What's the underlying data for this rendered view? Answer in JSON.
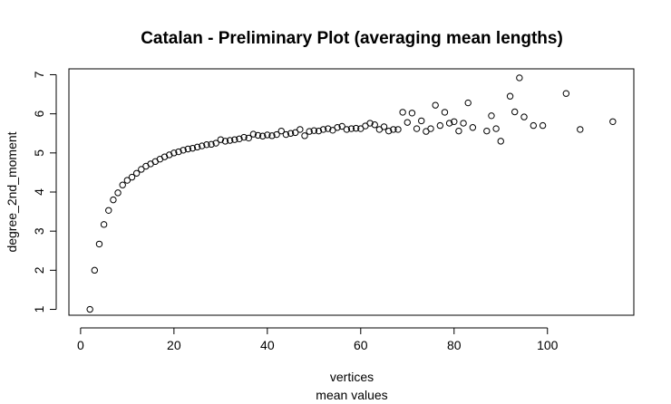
{
  "chart_data": {
    "type": "scatter",
    "title": "Catalan - Preliminary Plot (averaging mean lengths)",
    "xlabel": "vertices",
    "xlabel2": "mean values",
    "ylabel": "degree_2nd_moment",
    "xlim": [
      -2.5,
      118.5
    ],
    "ylim": [
      0.85,
      7.15
    ],
    "xticks": [
      0,
      20,
      40,
      60,
      80,
      100
    ],
    "yticks": [
      1,
      2,
      3,
      4,
      5,
      6,
      7
    ],
    "grid": false,
    "legend": "none",
    "marker": "open-circle",
    "points": [
      [
        2,
        1.0
      ],
      [
        3,
        2.0
      ],
      [
        4,
        2.67
      ],
      [
        5,
        3.17
      ],
      [
        6,
        3.53
      ],
      [
        7,
        3.8
      ],
      [
        8,
        3.98
      ],
      [
        9,
        4.18
      ],
      [
        10,
        4.3
      ],
      [
        11,
        4.38
      ],
      [
        12,
        4.48
      ],
      [
        13,
        4.58
      ],
      [
        14,
        4.66
      ],
      [
        15,
        4.72
      ],
      [
        16,
        4.78
      ],
      [
        17,
        4.84
      ],
      [
        18,
        4.9
      ],
      [
        19,
        4.95
      ],
      [
        20,
        5.0
      ],
      [
        21,
        5.03
      ],
      [
        22,
        5.07
      ],
      [
        23,
        5.1
      ],
      [
        24,
        5.12
      ],
      [
        25,
        5.15
      ],
      [
        26,
        5.18
      ],
      [
        27,
        5.21
      ],
      [
        28,
        5.22
      ],
      [
        29,
        5.25
      ],
      [
        30,
        5.34
      ],
      [
        31,
        5.3
      ],
      [
        32,
        5.32
      ],
      [
        33,
        5.34
      ],
      [
        34,
        5.36
      ],
      [
        35,
        5.4
      ],
      [
        36,
        5.38
      ],
      [
        37,
        5.48
      ],
      [
        38,
        5.45
      ],
      [
        39,
        5.43
      ],
      [
        40,
        5.46
      ],
      [
        41,
        5.44
      ],
      [
        42,
        5.47
      ],
      [
        43,
        5.56
      ],
      [
        44,
        5.47
      ],
      [
        45,
        5.5
      ],
      [
        46,
        5.52
      ],
      [
        47,
        5.6
      ],
      [
        48,
        5.44
      ],
      [
        49,
        5.55
      ],
      [
        50,
        5.57
      ],
      [
        51,
        5.56
      ],
      [
        52,
        5.6
      ],
      [
        53,
        5.62
      ],
      [
        54,
        5.58
      ],
      [
        55,
        5.65
      ],
      [
        56,
        5.68
      ],
      [
        57,
        5.6
      ],
      [
        58,
        5.62
      ],
      [
        59,
        5.63
      ],
      [
        60,
        5.62
      ],
      [
        61,
        5.69
      ],
      [
        62,
        5.76
      ],
      [
        63,
        5.72
      ],
      [
        64,
        5.6
      ],
      [
        65,
        5.67
      ],
      [
        66,
        5.56
      ],
      [
        67,
        5.6
      ],
      [
        68,
        5.6
      ],
      [
        69,
        6.04
      ],
      [
        70,
        5.78
      ],
      [
        71,
        6.02
      ],
      [
        72,
        5.62
      ],
      [
        73,
        5.82
      ],
      [
        74,
        5.55
      ],
      [
        75,
        5.62
      ],
      [
        76,
        6.22
      ],
      [
        77,
        5.7
      ],
      [
        78,
        6.04
      ],
      [
        79,
        5.76
      ],
      [
        80,
        5.8
      ],
      [
        81,
        5.56
      ],
      [
        82,
        5.76
      ],
      [
        83,
        6.28
      ],
      [
        84,
        5.65
      ],
      [
        87,
        5.56
      ],
      [
        88,
        5.95
      ],
      [
        89,
        5.62
      ],
      [
        90,
        5.3
      ],
      [
        92,
        6.45
      ],
      [
        93,
        6.05
      ],
      [
        94,
        6.92
      ],
      [
        95,
        5.92
      ],
      [
        97,
        5.7
      ],
      [
        99,
        5.7
      ],
      [
        104,
        6.52
      ],
      [
        107,
        5.6
      ],
      [
        114,
        5.8
      ]
    ]
  }
}
